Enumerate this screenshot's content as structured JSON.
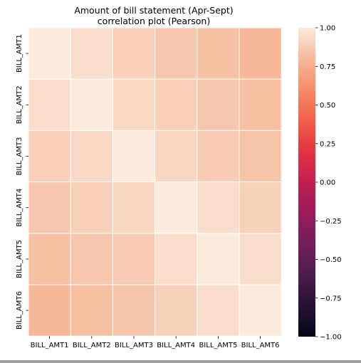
{
  "chart_data": {
    "type": "heatmap",
    "title": "Amount of bill statement (Apr-Sept)\ncorrelation plot (Pearson)",
    "xlabel": "",
    "ylabel": "",
    "x_categories": [
      "BILL_AMT1",
      "BILL_AMT2",
      "BILL_AMT3",
      "BILL_AMT4",
      "BILL_AMT5",
      "BILL_AMT6"
    ],
    "y_categories": [
      "BILL_AMT1",
      "BILL_AMT2",
      "BILL_AMT3",
      "BILL_AMT4",
      "BILL_AMT5",
      "BILL_AMT6"
    ],
    "values": [
      [
        1.0,
        0.95,
        0.89,
        0.86,
        0.83,
        0.8
      ],
      [
        0.95,
        1.0,
        0.93,
        0.89,
        0.86,
        0.83
      ],
      [
        0.89,
        0.93,
        1.0,
        0.92,
        0.88,
        0.85
      ],
      [
        0.86,
        0.89,
        0.92,
        1.0,
        0.94,
        0.9
      ],
      [
        0.83,
        0.86,
        0.88,
        0.94,
        1.0,
        0.95
      ],
      [
        0.8,
        0.83,
        0.85,
        0.9,
        0.95,
        1.0
      ]
    ],
    "vmin": -1.0,
    "vmax": 1.0,
    "colorbar_ticks": [
      1.0,
      0.75,
      0.5,
      0.25,
      0.0,
      -0.25,
      -0.5,
      -0.75,
      -1.0
    ],
    "colorbar_tick_labels": [
      "1.00",
      "0.75",
      "0.50",
      "0.25",
      "0.00",
      "−0.25",
      "−0.50",
      "−0.75",
      "−1.00"
    ],
    "colormap": "rocket",
    "cell_separators": "white",
    "grid": false,
    "legend_placement": "right"
  }
}
